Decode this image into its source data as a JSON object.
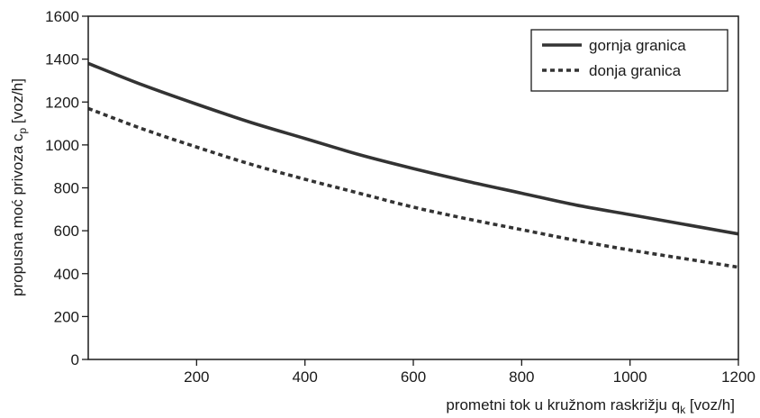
{
  "chart_data": {
    "type": "line",
    "title": "",
    "xlabel": "prometni tok u kružnom raskrižju q",
    "xlabel_sub": "k",
    "xlabel_unit": " [voz/h]",
    "ylabel": "propusna moć privoza c",
    "ylabel_sub": "p",
    "ylabel_unit": " [voz/h]",
    "xlim": [
      0,
      1200
    ],
    "ylim": [
      0,
      1600
    ],
    "xticks": [
      200,
      400,
      600,
      800,
      1000,
      1200
    ],
    "yticks": [
      0,
      200,
      400,
      600,
      800,
      1000,
      1200,
      1400,
      1600
    ],
    "grid": false,
    "legend_position": "top-right",
    "series": [
      {
        "name": "gornja granica",
        "style": "solid",
        "x": [
          0,
          100,
          200,
          300,
          400,
          500,
          600,
          700,
          800,
          900,
          1000,
          1100,
          1200
        ],
        "y": [
          1380,
          1280,
          1190,
          1105,
          1030,
          955,
          890,
          830,
          775,
          720,
          675,
          630,
          585
        ]
      },
      {
        "name": "donja granica",
        "style": "dashed",
        "x": [
          0,
          100,
          200,
          300,
          400,
          500,
          600,
          700,
          800,
          900,
          1000,
          1100,
          1200
        ],
        "y": [
          1170,
          1075,
          990,
          910,
          840,
          775,
          710,
          655,
          605,
          555,
          510,
          470,
          430
        ]
      }
    ]
  },
  "colors": {
    "line": "#333333",
    "axis": "#1a1a1a",
    "background": "#ffffff"
  }
}
